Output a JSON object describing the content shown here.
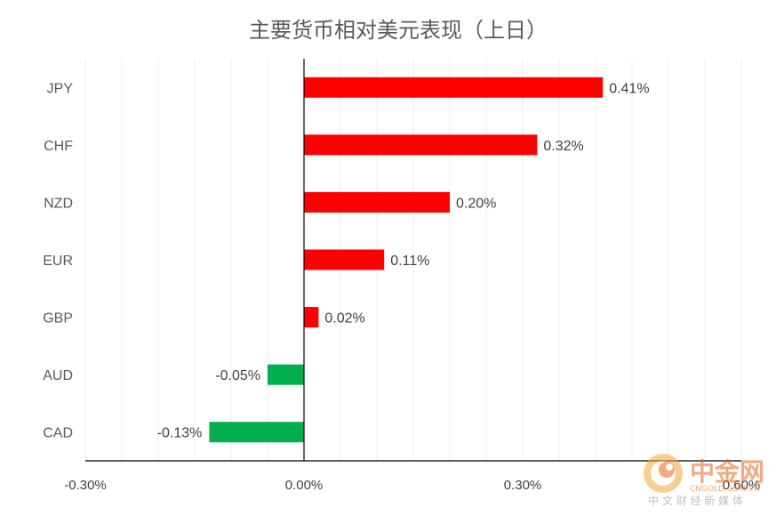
{
  "chart_data": {
    "type": "bar",
    "orientation": "horizontal",
    "title": "主要货币相对美元表现（上日）",
    "categories": [
      "JPY",
      "CHF",
      "NZD",
      "EUR",
      "GBP",
      "AUD",
      "CAD"
    ],
    "values": [
      0.41,
      0.32,
      0.2,
      0.11,
      0.02,
      -0.05,
      -0.13
    ],
    "value_labels": [
      "0.41%",
      "0.32%",
      "0.20%",
      "0.11%",
      "0.02%",
      "-0.05%",
      "-0.13%"
    ],
    "xlim": [
      -0.3,
      0.6
    ],
    "x_ticks": [
      -0.3,
      0.0,
      0.3,
      0.6
    ],
    "x_tick_labels": [
      "-0.30%",
      "0.00%",
      "0.30%",
      "0.60%"
    ],
    "grid": true,
    "legend": "none",
    "colors": {
      "positive": "#FF0000",
      "negative": "#00B050"
    }
  },
  "watermark": {
    "name": "中金网",
    "url": "CNGOLD.COM.CN",
    "tagline": "中 文 财 经 新 媒 体",
    "colors": {
      "primary": "#E8621A",
      "secondary": "#F3A93B"
    }
  }
}
